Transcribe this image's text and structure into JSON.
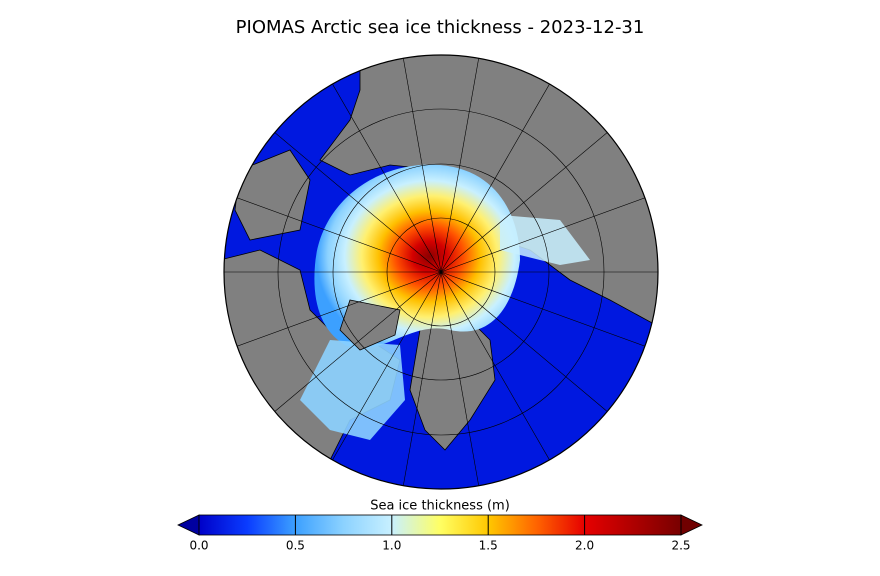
{
  "title": "PIOMAS Arctic sea ice thickness - 2023-12-31",
  "colorbar": {
    "label": "Sea ice thickness (m)",
    "range": [
      0,
      2.5
    ],
    "ticks": [
      {
        "value": 0,
        "label": "0.0"
      },
      0.5,
      {
        "value": 1,
        "label": "1.0"
      },
      1.5,
      {
        "value": 2,
        "label": "2.0"
      },
      2.5
    ]
  }
}
